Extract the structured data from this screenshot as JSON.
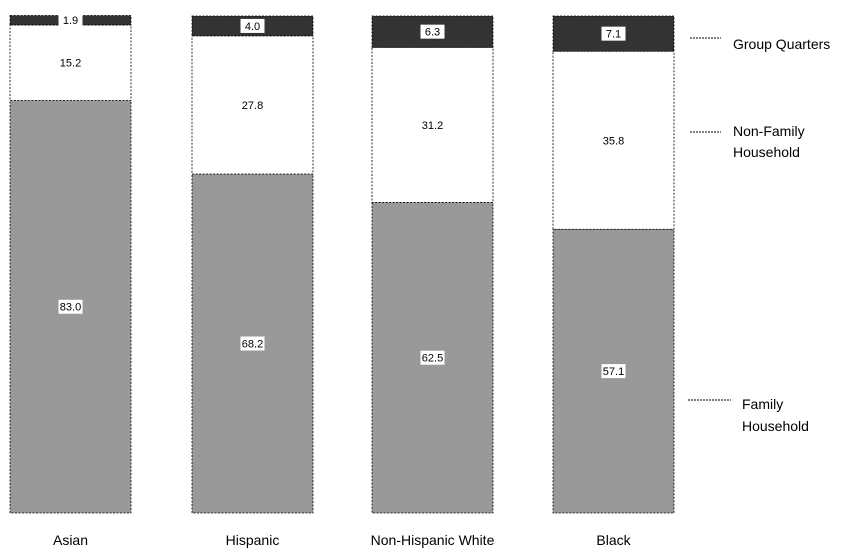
{
  "chart_data": {
    "type": "bar",
    "stacked": true,
    "normalized_to": 100,
    "categories": [
      "Asian",
      "Hispanic",
      "Non-Hispanic White",
      "Black"
    ],
    "series": [
      {
        "name": "Family Household",
        "values": [
          83.0,
          68.2,
          62.5,
          57.1
        ],
        "color": "#999999"
      },
      {
        "name": "Non-Family Household",
        "values": [
          15.2,
          27.8,
          31.2,
          35.8
        ],
        "color": "#ffffff"
      },
      {
        "name": "Group Quarters",
        "values": [
          1.9,
          4.0,
          6.3,
          7.1
        ],
        "color": "#333333"
      }
    ],
    "ylim": [
      0,
      100
    ],
    "grid": false,
    "axes_visible": false,
    "legend_position": "right",
    "title": "",
    "xlabel": "",
    "ylabel": ""
  }
}
